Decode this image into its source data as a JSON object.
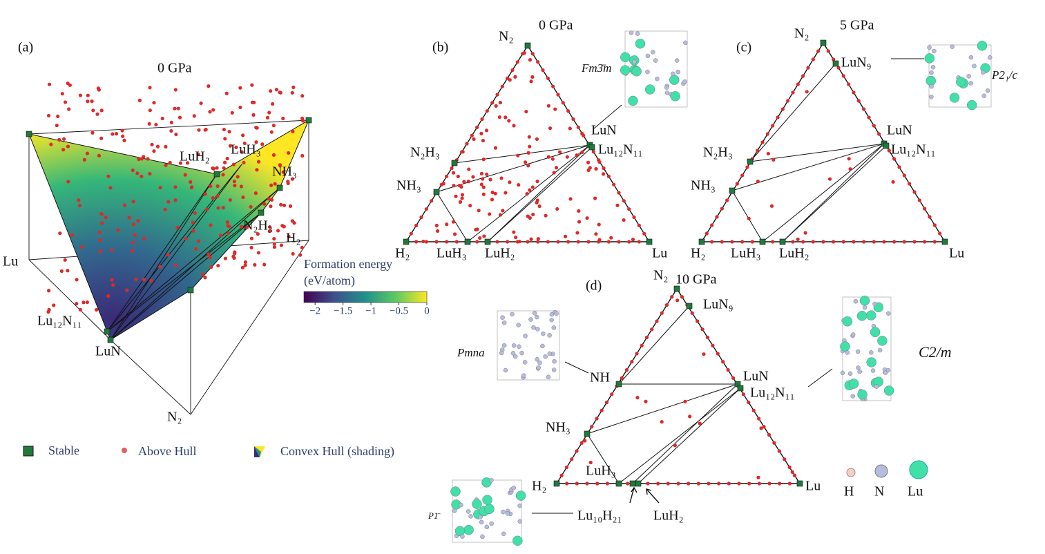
{
  "panels": [
    {
      "label": "(a)",
      "title": "0 GPa",
      "vertices": [
        "Lu",
        "N₂",
        "H₂"
      ],
      "phases": [
        "LuH₂",
        "LuH₃",
        "NH₃",
        "N₂H₃",
        "Lu₁₂N₁₁",
        "LuN"
      ]
    },
    {
      "label": "(b)",
      "title": "0 GPa",
      "vertices": [
        "H₂",
        "Lu",
        "N₂"
      ],
      "phases": [
        "LuN",
        "Lu₁₂N₁₁",
        "N₂H₃",
        "NH₃",
        "LuH₃",
        "LuH₂"
      ],
      "structure": "Fm3̄m"
    },
    {
      "label": "(c)",
      "title": "5 GPa",
      "vertices": [
        "H₂",
        "Lu",
        "N₂"
      ],
      "phases": [
        "LuN₉",
        "LuN",
        "Lu₁₂N₁₁",
        "N₂H₃",
        "NH₃",
        "LuH₃",
        "LuH₂"
      ],
      "structure": "P2₁/c"
    },
    {
      "label": "(d)",
      "title": "10 GPa",
      "vertices": [
        "H₂",
        "Lu",
        "N₂"
      ],
      "phases": [
        "LuN₉",
        "NH",
        "LuN",
        "Lu₁₂N₁₁",
        "NH₃",
        "LuH₃",
        "Lu₁₀H₂₁",
        "LuH₂"
      ],
      "structures": [
        "Pmna",
        "C2/m",
        "P1̄"
      ]
    }
  ],
  "colorbar": {
    "title": "Formation energy",
    "unit": "(eV/atom)",
    "ticks": [
      {
        "value": -2,
        "label": "−2"
      },
      {
        "value": -1.5,
        "label": "−1.5"
      },
      {
        "value": -1,
        "label": "−1"
      },
      {
        "value": -0.5,
        "label": "−0.5"
      },
      0
    ],
    "lim": [
      -2.2,
      0
    ]
  },
  "legend": [
    "Stable",
    "Above Hull",
    "Convex Hull (shading)"
  ],
  "atoms": [
    "H",
    "N",
    "Lu"
  ]
}
